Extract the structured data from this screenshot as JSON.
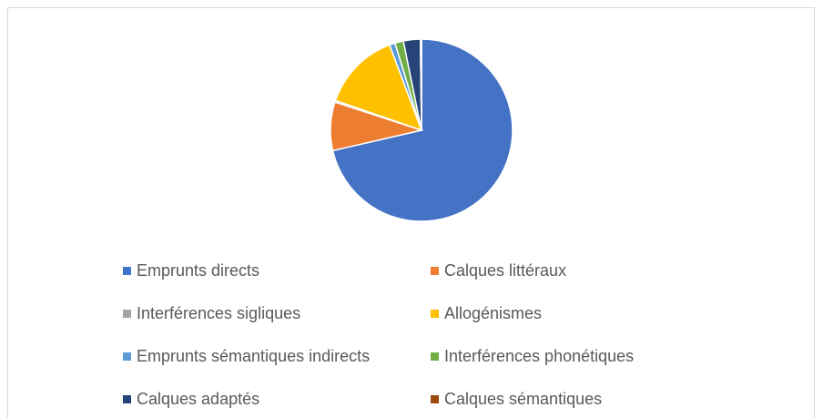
{
  "chart_data": {
    "type": "pie",
    "categories": [
      "Emprunts directs",
      "Calques littéraux",
      "Interférences sigliques",
      "Allogénismes",
      "Emprunts sémantiques indirects",
      "Interférences phonétiques",
      "Calques adaptés",
      "Calques sémantiques"
    ],
    "values": [
      71.4,
      8.6,
      0.3,
      14,
      1,
      1.5,
      3,
      0.2
    ],
    "colors": [
      "#4472C4",
      "#ED7D31",
      "#A5A5A5",
      "#FFC000",
      "#5B9BD5",
      "#70AD47",
      "#264478",
      "#9E480E"
    ],
    "legend": "bottom"
  }
}
